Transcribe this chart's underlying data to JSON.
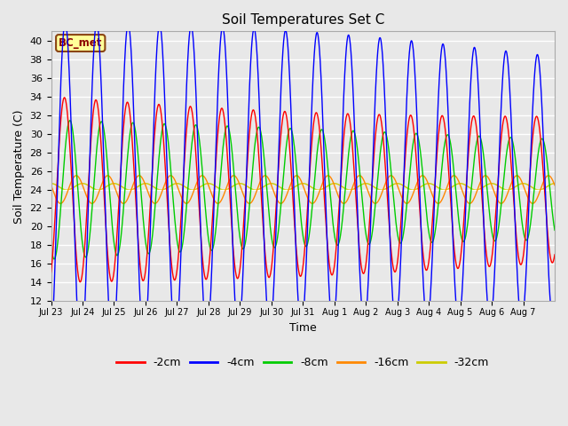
{
  "title": "Soil Temperatures Set C",
  "xlabel": "Time",
  "ylabel": "Soil Temperature (C)",
  "ylim": [
    12,
    41
  ],
  "yticks": [
    12,
    14,
    16,
    18,
    20,
    22,
    24,
    26,
    28,
    30,
    32,
    34,
    36,
    38,
    40
  ],
  "bg_color": "#e8e8e8",
  "annotation_text": "BC_met",
  "annotation_color": "#8B0000",
  "annotation_bg": "#ffff99",
  "legend_labels": [
    "-2cm",
    "-4cm",
    "-8cm",
    "-16cm",
    "-32cm"
  ],
  "line_colors": [
    "#ff0000",
    "#0000ff",
    "#00cc00",
    "#ff8800",
    "#cccc00"
  ],
  "tick_labels": [
    "Jul 23",
    "Jul 24",
    "Jul 25",
    "Jul 26",
    "Jul 27",
    "Jul 28",
    "Jul 29",
    "Jul 30",
    "Jul 31",
    "Aug 1",
    "Aug 2",
    "Aug 3",
    "Aug 4",
    "Aug 5",
    "Aug 6",
    "Aug 7"
  ],
  "num_days": 16,
  "points_per_day": 96
}
